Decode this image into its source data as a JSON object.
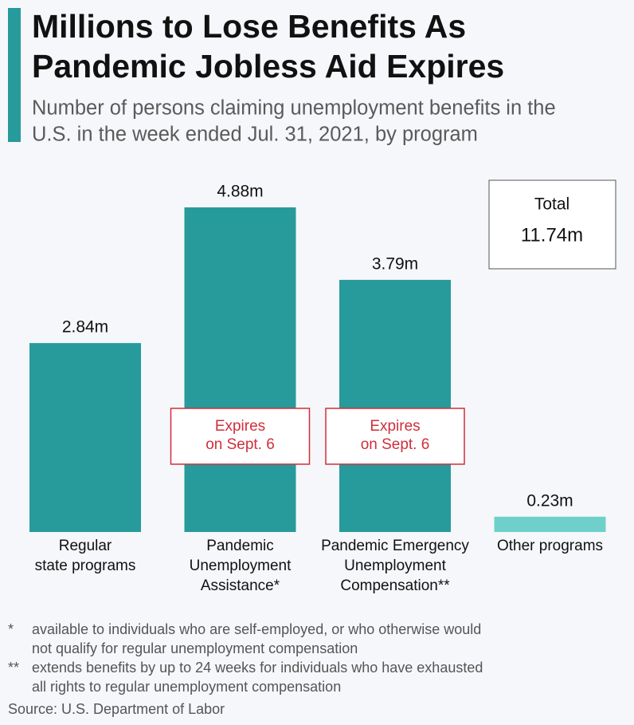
{
  "chart_data": {
    "type": "bar",
    "title": [
      "Millions to Lose Benefits As",
      "Pandemic Jobless Aid Expires"
    ],
    "subtitle": [
      "Number of persons claiming unemployment benefits in the",
      "U.S. in the week ended Jul. 31, 2021, by program"
    ],
    "categories": [
      [
        "Regular",
        "state programs"
      ],
      [
        "Pandemic",
        "Unemployment",
        "Assistance*"
      ],
      [
        "Pandemic Emergency",
        "Unemployment",
        "Compensation**"
      ],
      [
        "Other programs"
      ]
    ],
    "values": [
      2.84,
      4.88,
      3.79,
      0.23
    ],
    "value_labels": [
      "2.84m",
      "4.88m",
      "3.79m",
      "0.23m"
    ],
    "colors": [
      "#279a9b",
      "#279a9b",
      "#279a9b",
      "#6fd0cb"
    ],
    "notes": [
      null,
      [
        "Expires",
        "on Sept. 6"
      ],
      [
        "Expires",
        "on Sept. 6"
      ],
      null
    ],
    "total": {
      "title": "Total",
      "text": "11.74m"
    },
    "footnotes": [
      {
        "marker": "*",
        "lines": [
          "available to individuals who are self-employed, or who otherwise would",
          "not qualify for regular unemployment compensation"
        ]
      },
      {
        "marker": "**",
        "lines": [
          "extends benefits by up to 24 weeks for individuals who have exhausted",
          "all rights to regular unemployment compensation"
        ]
      }
    ],
    "source": "Source: U.S. Department of Labor"
  }
}
